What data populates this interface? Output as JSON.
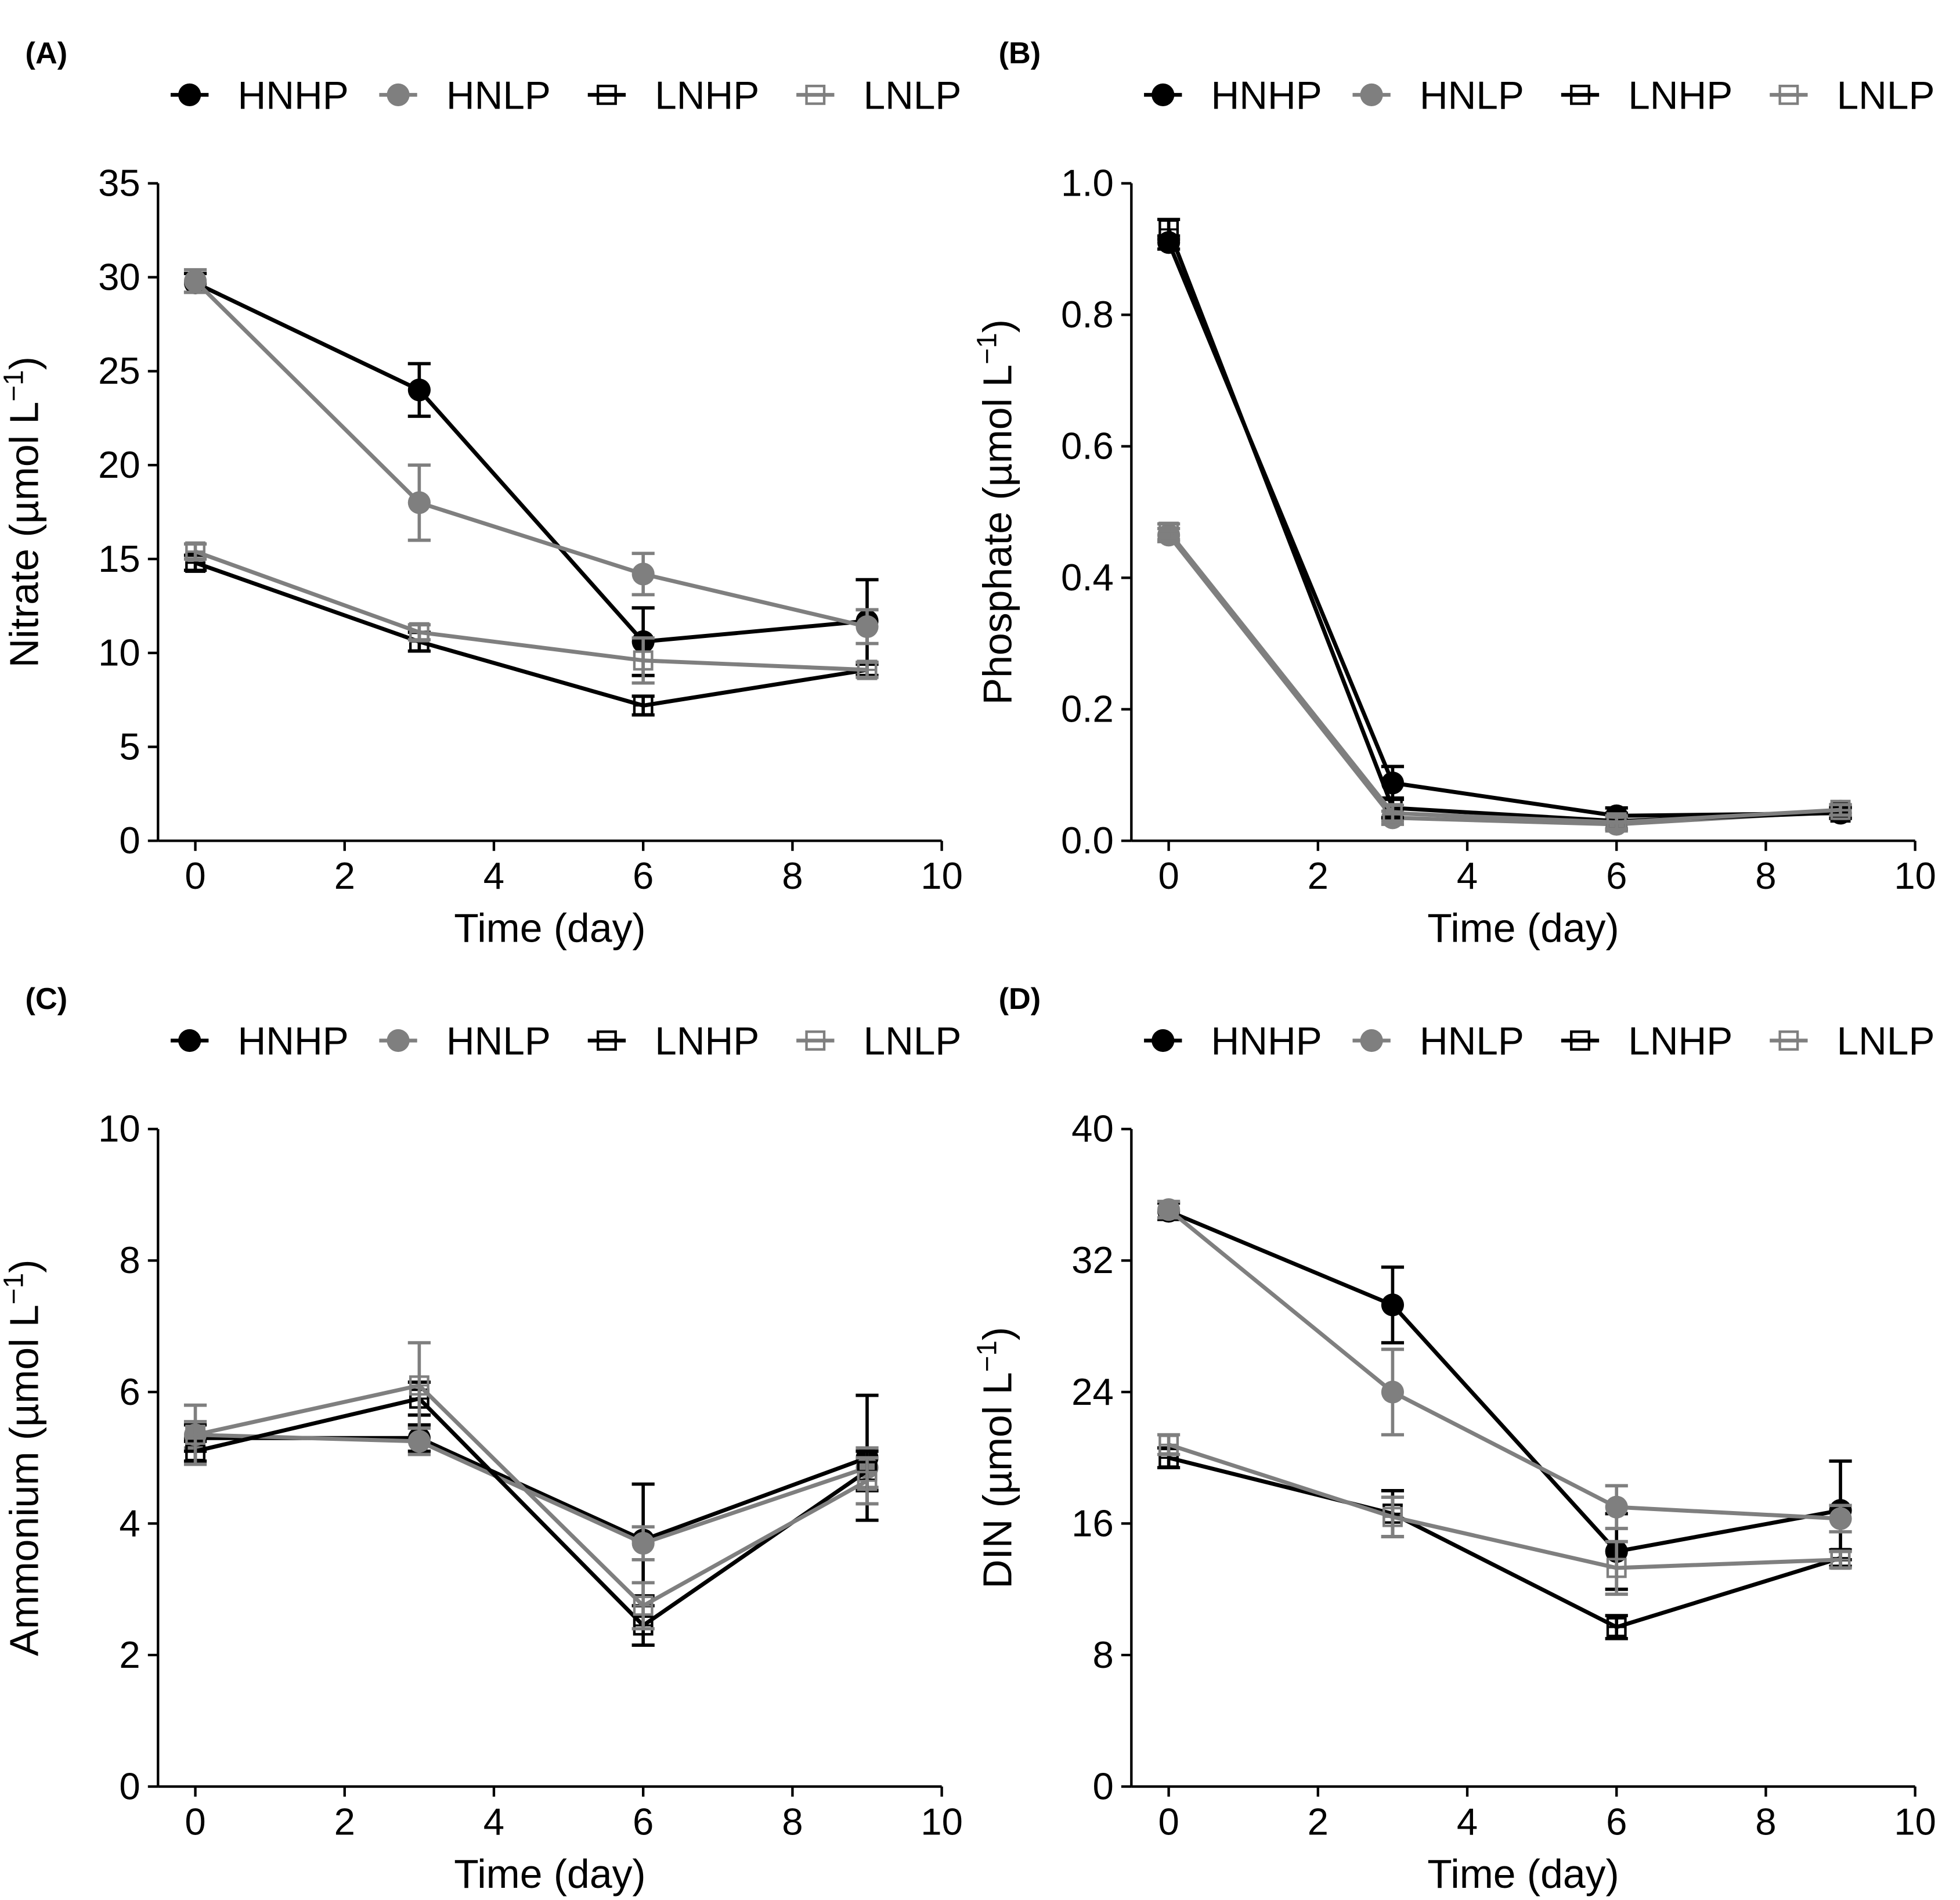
{
  "figure": {
    "legend_entries": [
      "HNHP",
      "HNLP",
      "LNHP",
      "LNLP"
    ]
  },
  "chart_data": [
    {
      "panel_label": "(A)",
      "type": "line",
      "title": "",
      "xlabel": "Time (day)",
      "ylabel": "Nitrate (µmol L−1)",
      "ylabel_main": "Nitrate (µmol L",
      "ylabel_sup": "−1",
      "ylabel_close": ")",
      "xlim": [
        -0.5,
        10
      ],
      "ylim": [
        0,
        35
      ],
      "xticks": [
        0,
        2,
        4,
        6,
        8,
        10
      ],
      "xtick_labels": [
        "0",
        "2",
        "4",
        "6",
        "8",
        "10"
      ],
      "yticks": [
        0,
        5,
        10,
        15,
        20,
        25,
        30,
        35
      ],
      "ytick_labels": [
        "0",
        "5",
        "10",
        "15",
        "20",
        "25",
        "30",
        "35"
      ],
      "legend": [
        "HNHP",
        "HNLP",
        "LNHP",
        "LNLP"
      ],
      "legend_position": "top",
      "grid": false,
      "x": [
        0,
        3,
        6,
        9
      ],
      "series": [
        {
          "name": "HNHP",
          "color": "#000000",
          "marker": "circle",
          "values": [
            29.7,
            24.0,
            10.6,
            11.7
          ],
          "errors": [
            0.5,
            1.4,
            1.8,
            2.2
          ]
        },
        {
          "name": "HNLP",
          "color": "#7f7f7f",
          "marker": "circle",
          "values": [
            29.8,
            18.0,
            14.2,
            11.4
          ],
          "errors": [
            0.6,
            2.0,
            1.1,
            0.9
          ]
        },
        {
          "name": "LNHP",
          "color": "#000000",
          "marker": "square",
          "values": [
            14.8,
            10.6,
            7.2,
            9.1
          ],
          "errors": [
            0.4,
            0.5,
            0.5,
            0.3
          ]
        },
        {
          "name": "LNLP",
          "color": "#7f7f7f",
          "marker": "square",
          "values": [
            15.4,
            11.1,
            9.6,
            9.1
          ],
          "errors": [
            0.4,
            0.4,
            1.2,
            0.4
          ]
        }
      ]
    },
    {
      "panel_label": "(B)",
      "type": "line",
      "title": "",
      "xlabel": "Time (day)",
      "ylabel": "Phosphate (µmol L−1)",
      "ylabel_main": "Phosphate (µmol L",
      "ylabel_sup": "−1",
      "ylabel_close": ")",
      "xlim": [
        -0.5,
        10
      ],
      "ylim": [
        0,
        1.0
      ],
      "xticks": [
        0,
        2,
        4,
        6,
        8,
        10
      ],
      "xtick_labels": [
        "0",
        "2",
        "4",
        "6",
        "8",
        "10"
      ],
      "yticks": [
        0,
        0.2,
        0.4,
        0.6,
        0.8,
        1.0
      ],
      "ytick_labels": [
        "0.0",
        "0.2",
        "0.4",
        "0.6",
        "0.8",
        "1.0"
      ],
      "legend": [
        "HNHP",
        "HNLP",
        "LNHP",
        "LNLP"
      ],
      "legend_position": "top",
      "grid": false,
      "x": [
        0,
        3,
        6,
        9
      ],
      "series": [
        {
          "name": "HNHP",
          "color": "#000000",
          "marker": "circle",
          "values": [
            0.91,
            0.088,
            0.038,
            0.042
          ],
          "errors": [
            0.01,
            0.025,
            0.012,
            0.008
          ]
        },
        {
          "name": "HNLP",
          "color": "#7f7f7f",
          "marker": "circle",
          "values": [
            0.465,
            0.035,
            0.025,
            0.045
          ],
          "errors": [
            0.01,
            0.01,
            0.01,
            0.008
          ]
        },
        {
          "name": "LNHP",
          "color": "#000000",
          "marker": "square",
          "values": [
            0.93,
            0.05,
            0.03,
            0.043
          ],
          "errors": [
            0.015,
            0.015,
            0.012,
            0.008
          ]
        },
        {
          "name": "LNLP",
          "color": "#7f7f7f",
          "marker": "square",
          "values": [
            0.47,
            0.042,
            0.028,
            0.047
          ],
          "errors": [
            0.012,
            0.012,
            0.01,
            0.008
          ]
        }
      ]
    },
    {
      "panel_label": "(C)",
      "type": "line",
      "title": "",
      "xlabel": "Time (day)",
      "ylabel": "Ammonium (µmol L−1)",
      "ylabel_main": "Ammonium (µmol L",
      "ylabel_sup": "−1",
      "ylabel_close": ")",
      "xlim": [
        -0.5,
        10
      ],
      "ylim": [
        0,
        10
      ],
      "xticks": [
        0,
        2,
        4,
        6,
        8,
        10
      ],
      "xtick_labels": [
        "0",
        "2",
        "4",
        "6",
        "8",
        "10"
      ],
      "yticks": [
        0,
        2,
        4,
        6,
        8,
        10
      ],
      "ytick_labels": [
        "0",
        "2",
        "4",
        "6",
        "8",
        "10"
      ],
      "legend": [
        "HNHP",
        "HNLP",
        "LNHP",
        "LNLP"
      ],
      "legend_position": "top",
      "grid": false,
      "x": [
        0,
        3,
        6,
        9
      ],
      "series": [
        {
          "name": "HNHP",
          "color": "#000000",
          "marker": "circle",
          "values": [
            5.3,
            5.3,
            3.75,
            5.0
          ],
          "errors": [
            0.2,
            0.2,
            0.85,
            0.95
          ]
        },
        {
          "name": "HNLP",
          "color": "#7f7f7f",
          "marker": "circle",
          "values": [
            5.35,
            5.25,
            3.7,
            4.85
          ],
          "errors": [
            0.2,
            0.2,
            0.25,
            0.3
          ]
        },
        {
          "name": "LNHP",
          "color": "#000000",
          "marker": "square",
          "values": [
            5.1,
            5.9,
            2.45,
            4.8
          ],
          "errors": [
            0.15,
            0.25,
            0.3,
            0.3
          ]
        },
        {
          "name": "LNLP",
          "color": "#7f7f7f",
          "marker": "square",
          "values": [
            5.35,
            6.1,
            2.75,
            4.65
          ],
          "errors": [
            0.45,
            0.65,
            0.35,
            0.35
          ]
        }
      ]
    },
    {
      "panel_label": "(D)",
      "type": "line",
      "title": "",
      "xlabel": "Time (day)",
      "ylabel": "DIN (µmol L−1)",
      "ylabel_main": "DIN (µmol L",
      "ylabel_sup": "−1",
      "ylabel_close": ")",
      "xlim": [
        -0.5,
        10
      ],
      "ylim": [
        0,
        40
      ],
      "xticks": [
        0,
        2,
        4,
        6,
        8,
        10
      ],
      "xtick_labels": [
        "0",
        "2",
        "4",
        "6",
        "8",
        "10"
      ],
      "yticks": [
        0,
        8,
        16,
        24,
        32,
        40
      ],
      "ytick_labels": [
        "0",
        "8",
        "16",
        "24",
        "32",
        "40"
      ],
      "legend": [
        "HNHP",
        "HNLP",
        "LNHP",
        "LNLP"
      ],
      "legend_position": "top",
      "grid": false,
      "x": [
        0,
        3,
        6,
        9
      ],
      "series": [
        {
          "name": "HNHP",
          "color": "#000000",
          "marker": "circle",
          "values": [
            35.0,
            29.3,
            14.3,
            16.8
          ],
          "errors": [
            0.5,
            2.3,
            2.3,
            3.0
          ]
        },
        {
          "name": "HNLP",
          "color": "#7f7f7f",
          "marker": "circle",
          "values": [
            35.1,
            24.0,
            17.0,
            16.3
          ],
          "errors": [
            0.5,
            2.6,
            1.3,
            0.8
          ]
        },
        {
          "name": "LNHP",
          "color": "#000000",
          "marker": "square",
          "values": [
            20.0,
            16.6,
            9.7,
            13.9
          ],
          "errors": [
            0.6,
            1.4,
            0.7,
            0.5
          ]
        },
        {
          "name": "LNLP",
          "color": "#7f7f7f",
          "marker": "square",
          "values": [
            20.8,
            16.4,
            13.3,
            13.8
          ],
          "errors": [
            0.6,
            1.2,
            1.6,
            0.5
          ]
        }
      ]
    }
  ]
}
